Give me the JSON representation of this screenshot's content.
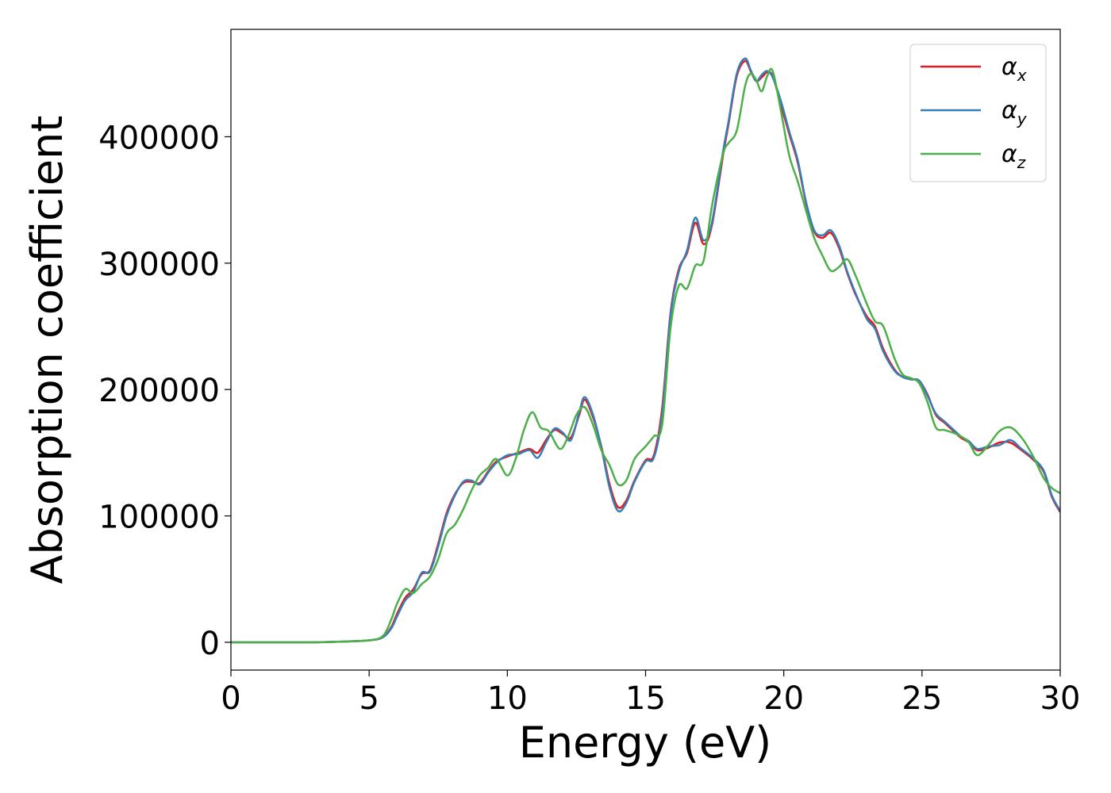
{
  "chart_data": {
    "type": "line",
    "xlabel": "Energy (eV)",
    "ylabel": "Absorption coefficient",
    "xlim": [
      0,
      30
    ],
    "ylim": [
      -22000,
      485000
    ],
    "x_ticks": [
      0,
      5,
      10,
      15,
      20,
      25,
      30
    ],
    "y_ticks": [
      0,
      100000,
      200000,
      300000,
      400000
    ],
    "legend_position": "top-right",
    "grid": false,
    "series": [
      {
        "name": "α_x",
        "label_base": "α",
        "label_sub": "x",
        "color": "#e41a1c",
        "x": [
          0,
          1,
          2,
          3,
          4,
          5,
          5.5,
          5.8,
          6.0,
          6.3,
          6.6,
          6.9,
          7.2,
          7.5,
          7.8,
          8.1,
          8.4,
          8.7,
          9.0,
          9.3,
          9.6,
          10.0,
          10.4,
          10.8,
          11.1,
          11.4,
          11.7,
          12.0,
          12.3,
          12.6,
          12.8,
          13.1,
          13.4,
          13.7,
          14.0,
          14.3,
          14.6,
          15.0,
          15.3,
          15.6,
          15.9,
          16.2,
          16.5,
          16.8,
          17.1,
          17.4,
          17.8,
          18.0,
          18.3,
          18.6,
          18.8,
          19.0,
          19.2,
          19.4,
          19.6,
          19.9,
          20.2,
          20.5,
          20.8,
          21.1,
          21.4,
          21.7,
          22.0,
          22.3,
          22.6,
          23.0,
          23.3,
          23.6,
          24.0,
          24.3,
          24.6,
          24.9,
          25.2,
          25.5,
          25.8,
          26.1,
          26.4,
          26.7,
          27.0,
          27.4,
          27.8,
          28.2,
          28.6,
          29.0,
          29.4,
          29.7,
          30.0
        ],
        "y": [
          0,
          0,
          0,
          0,
          500,
          1500,
          4000,
          12000,
          22000,
          35000,
          42000,
          54000,
          57000,
          78000,
          102000,
          117000,
          126000,
          127000,
          126000,
          135000,
          143000,
          147000,
          150000,
          153000,
          150000,
          160000,
          168000,
          165000,
          162000,
          180000,
          192000,
          178000,
          155000,
          125000,
          107000,
          112000,
          128000,
          144000,
          148000,
          185000,
          260000,
          295000,
          308000,
          332000,
          315000,
          330000,
          385000,
          410000,
          448000,
          460000,
          452000,
          444000,
          447000,
          451000,
          448000,
          425000,
          402000,
          380000,
          348000,
          325000,
          320000,
          324000,
          312000,
          292000,
          275000,
          258000,
          250000,
          232000,
          216000,
          210000,
          208000,
          207000,
          196000,
          180000,
          174000,
          168000,
          162000,
          158000,
          152000,
          154000,
          158000,
          158000,
          152000,
          145000,
          135000,
          115000,
          103000
        ]
      },
      {
        "name": "α_y",
        "label_base": "α",
        "label_sub": "y",
        "color": "#377eb8",
        "x": [
          0,
          1,
          2,
          3,
          4,
          5,
          5.5,
          5.8,
          6.0,
          6.3,
          6.6,
          6.9,
          7.2,
          7.5,
          7.8,
          8.1,
          8.4,
          8.7,
          9.0,
          9.3,
          9.6,
          10.0,
          10.4,
          10.8,
          11.1,
          11.4,
          11.7,
          12.0,
          12.3,
          12.6,
          12.8,
          13.1,
          13.4,
          13.7,
          14.0,
          14.3,
          14.6,
          15.0,
          15.3,
          15.6,
          15.9,
          16.2,
          16.5,
          16.8,
          17.1,
          17.4,
          17.8,
          18.0,
          18.3,
          18.6,
          18.8,
          19.0,
          19.2,
          19.4,
          19.6,
          19.9,
          20.2,
          20.5,
          20.8,
          21.1,
          21.4,
          21.7,
          22.0,
          22.3,
          22.6,
          23.0,
          23.3,
          23.6,
          24.0,
          24.3,
          24.6,
          24.9,
          25.2,
          25.5,
          25.8,
          26.1,
          26.4,
          26.7,
          27.0,
          27.4,
          27.8,
          28.2,
          28.6,
          29.0,
          29.4,
          29.7,
          30.0
        ],
        "y": [
          0,
          0,
          0,
          0,
          500,
          1500,
          4000,
          11000,
          20000,
          33000,
          40000,
          55000,
          56000,
          76000,
          100000,
          116000,
          127000,
          128000,
          125000,
          134000,
          142000,
          148000,
          149000,
          152000,
          146000,
          158000,
          169000,
          166000,
          160000,
          182000,
          194000,
          180000,
          154000,
          122000,
          104000,
          110000,
          127000,
          143000,
          146000,
          180000,
          258000,
          293000,
          310000,
          336000,
          318000,
          332000,
          388000,
          412000,
          450000,
          462000,
          453000,
          444000,
          449000,
          452000,
          447000,
          428000,
          404000,
          382000,
          349000,
          326000,
          322000,
          326000,
          314000,
          293000,
          276000,
          256000,
          248000,
          230000,
          215000,
          210000,
          208000,
          207000,
          195000,
          181000,
          175000,
          169000,
          163000,
          159000,
          153000,
          155000,
          156000,
          160000,
          153000,
          146000,
          136000,
          116000,
          104000
        ]
      },
      {
        "name": "α_z",
        "label_base": "α",
        "label_sub": "z",
        "color": "#4daf4a",
        "x": [
          0,
          1,
          2,
          3,
          4,
          5,
          5.5,
          5.8,
          6.0,
          6.3,
          6.6,
          6.9,
          7.2,
          7.5,
          7.8,
          8.1,
          8.4,
          8.7,
          9.0,
          9.3,
          9.6,
          10.0,
          10.3,
          10.6,
          10.9,
          11.2,
          11.5,
          11.9,
          12.2,
          12.5,
          12.8,
          13.1,
          13.4,
          13.7,
          14.0,
          14.3,
          14.6,
          15.0,
          15.3,
          15.6,
          15.9,
          16.2,
          16.5,
          16.8,
          17.1,
          17.4,
          17.8,
          18.0,
          18.3,
          18.6,
          18.8,
          19.0,
          19.2,
          19.4,
          19.6,
          19.9,
          20.2,
          20.5,
          20.8,
          21.1,
          21.4,
          21.7,
          22.0,
          22.3,
          22.6,
          23.0,
          23.3,
          23.6,
          24.0,
          24.3,
          24.6,
          24.9,
          25.2,
          25.5,
          25.8,
          26.1,
          26.4,
          26.7,
          27.0,
          27.4,
          27.8,
          28.2,
          28.6,
          29.0,
          29.4,
          29.7,
          30.0
        ],
        "y": [
          0,
          0,
          0,
          0,
          500,
          1500,
          5000,
          18000,
          30000,
          42000,
          39000,
          46000,
          52000,
          66000,
          86000,
          93000,
          105000,
          120000,
          132000,
          138000,
          145000,
          132000,
          145000,
          168000,
          182000,
          170000,
          167000,
          153000,
          163000,
          180000,
          186000,
          172000,
          152000,
          140000,
          125000,
          128000,
          145000,
          155000,
          163000,
          172000,
          248000,
          282000,
          280000,
          298000,
          302000,
          345000,
          386000,
          395000,
          405000,
          440000,
          450000,
          445000,
          436000,
          448000,
          452000,
          420000,
          385000,
          365000,
          342000,
          320000,
          306000,
          294000,
          297000,
          303000,
          290000,
          268000,
          254000,
          250000,
          225000,
          212000,
          209000,
          205000,
          190000,
          170000,
          168000,
          166000,
          163000,
          158000,
          148000,
          156000,
          167000,
          170000,
          162000,
          148000,
          130000,
          122000,
          118000
        ]
      }
    ]
  }
}
